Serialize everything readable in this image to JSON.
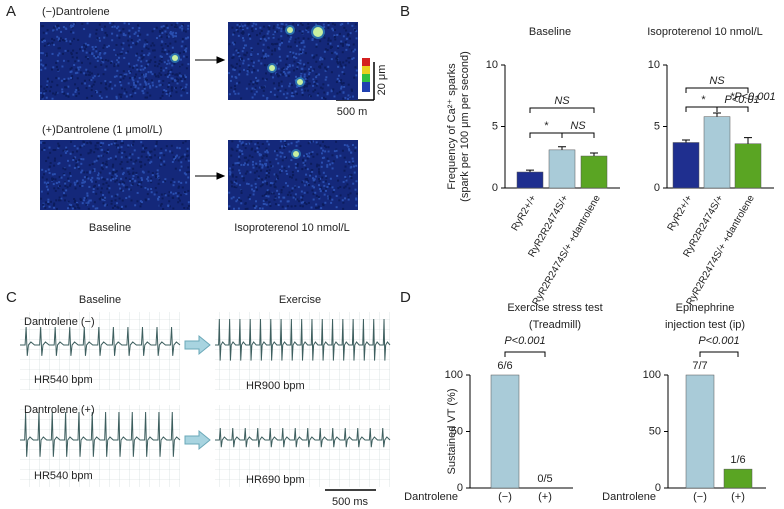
{
  "panel_labels": [
    "A",
    "B",
    "C",
    "D"
  ],
  "panel_a": {
    "top_label": "(−)Dantrolene",
    "bottom_label": "(+)Dantrolene (1 μmol/L)",
    "scale_y": "20 μm",
    "scale_x": "500 m",
    "captions": [
      "Baseline",
      "Isoproterenol 10 nmol/L"
    ]
  },
  "panel_c": {
    "columns": [
      "Baseline",
      "Exercise"
    ],
    "rows": [
      "Dantrolene (−)",
      "Dantrolene (+)"
    ],
    "hr": [
      [
        "HR540 bpm",
        "HR900 bpm"
      ],
      [
        "HR540 bpm",
        "HR690 bpm"
      ]
    ],
    "scale": "500 ms"
  },
  "chart_data": [
    {
      "type": "bar",
      "title": "Baseline",
      "ylabel": [
        "Frequency of Ca²⁺ sparks",
        "(spark per 100 μm per second)"
      ],
      "categories": [
        "RyR2+/+",
        "RyR2R2474S/+",
        "RyR2R2474S/+ +dantrolene"
      ],
      "values": [
        1.3,
        3.1,
        2.6
      ],
      "errors": [
        0.15,
        0.25,
        0.25
      ],
      "colors": [
        "#1f2f8f",
        "#a9cbd8",
        "#5aa523"
      ],
      "ylim": [
        0,
        10
      ],
      "yticks": [
        0,
        5,
        10
      ],
      "annotations": [
        "NS",
        "*",
        "NS"
      ]
    },
    {
      "type": "bar",
      "title": "Isoproterenol 10 nmol/L",
      "categories": [
        "RyR2+/+",
        "RyR2R2474S/+",
        "RyR2R2474S/+ +dantrolene"
      ],
      "values": [
        3.7,
        5.8,
        3.6
      ],
      "errors": [
        0.2,
        0.3,
        0.5
      ],
      "colors": [
        "#1f2f8f",
        "#a9cbd8",
        "#5aa523"
      ],
      "ylim": [
        0,
        10
      ],
      "yticks": [
        0,
        5,
        10
      ],
      "annotations": [
        "NS",
        "*",
        "P<0.01",
        "*P<0.001"
      ]
    },
    {
      "type": "bar",
      "title": "Exercise stress test",
      "subtitle": "(Treadmill)",
      "ylabel": [
        "Sustained VT (%)"
      ],
      "x_prefix": "Dantrolene",
      "categories": [
        "(−)",
        "(+)"
      ],
      "values": [
        100,
        0
      ],
      "value_labels": [
        "6/6",
        "0/5"
      ],
      "colors": [
        "#a9cbd8",
        "#5aa523"
      ],
      "ylim": [
        0,
        100
      ],
      "yticks": [
        0,
        50,
        100
      ],
      "annotations": [
        "P<0.001"
      ]
    },
    {
      "type": "bar",
      "title": "Epinephrine",
      "subtitle": "injection test (ip)",
      "x_prefix": "Dantrolene",
      "categories": [
        "(−)",
        "(+)"
      ],
      "values": [
        100,
        16.7
      ],
      "value_labels": [
        "7/7",
        "1/6"
      ],
      "colors": [
        "#a9cbd8",
        "#5aa523"
      ],
      "ylim": [
        0,
        100
      ],
      "yticks": [
        0,
        50,
        100
      ],
      "annotations": [
        "P<0.001"
      ]
    }
  ]
}
